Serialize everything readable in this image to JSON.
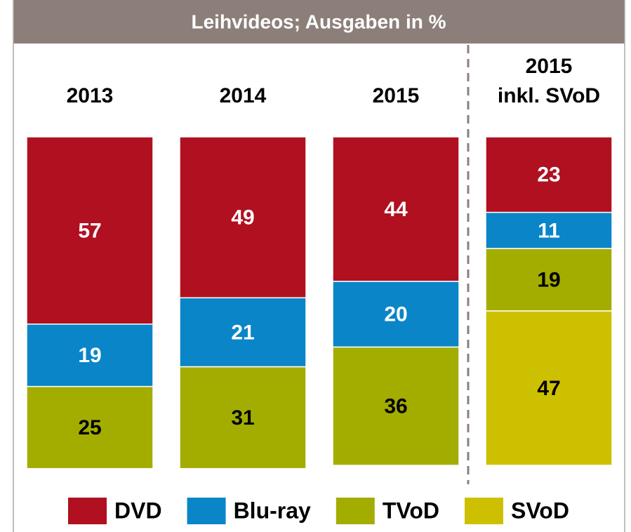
{
  "chart_data": {
    "type": "stacked_bar",
    "title": "Leihvideos; Ausgaben in %",
    "categories": [
      "2013",
      "2014",
      "2015",
      "2015\ninkl. SVoD"
    ],
    "series": [
      {
        "name": "DVD",
        "color": "#b01020",
        "label_color": "#ffffff",
        "values": [
          57,
          49,
          44,
          23
        ]
      },
      {
        "name": "Blu-ray",
        "color": "#0a85c8",
        "label_color": "#ffffff",
        "values": [
          19,
          21,
          20,
          11
        ]
      },
      {
        "name": "TVoD",
        "color": "#a3ad00",
        "label_color": "#000000",
        "values": [
          25,
          31,
          36,
          19
        ]
      },
      {
        "name": "SVoD",
        "color": "#cdc000",
        "label_color": "#000000",
        "values": [
          null,
          null,
          null,
          47
        ]
      }
    ],
    "ylim": [
      0,
      100
    ],
    "legend": "bottom"
  }
}
